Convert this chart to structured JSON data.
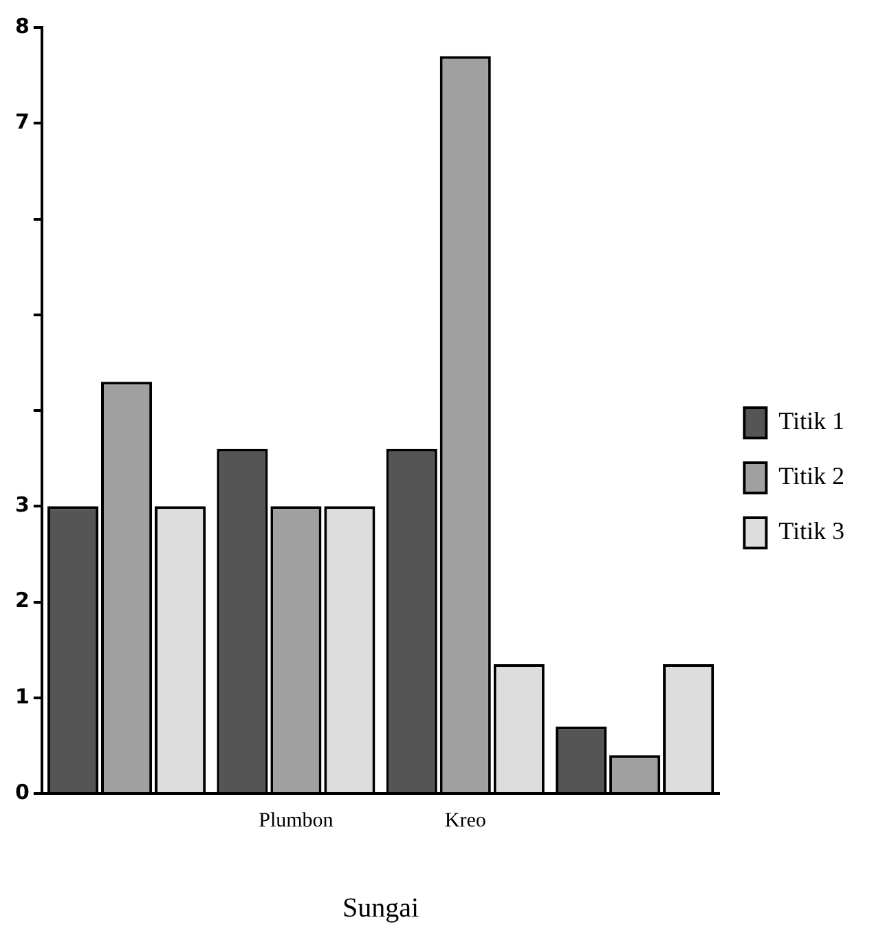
{
  "chart_data": {
    "type": "bar",
    "xlabel": "Sungai",
    "categories": [
      null,
      "Plumbon",
      "Kreo",
      null
    ],
    "series": [
      {
        "name": "Titik 1",
        "color": "#555555",
        "values": [
          3,
          3.6,
          3.6,
          0.7
        ]
      },
      {
        "name": "Titik 2",
        "color": "#a0a0a0",
        "values": [
          4.3,
          3,
          7.7,
          0.4
        ]
      },
      {
        "name": "Titik 3",
        "color": "#dddddd",
        "values": [
          3,
          3,
          1.35,
          1.35
        ]
      }
    ],
    "ylim": [
      0,
      8
    ],
    "yticks": [
      0,
      1,
      2,
      3,
      {
        "value": 4,
        "label": null
      },
      {
        "value": 5,
        "label": null
      },
      {
        "value": 6,
        "label": null
      },
      7,
      8
    ],
    "grid": false,
    "legend": "right"
  }
}
